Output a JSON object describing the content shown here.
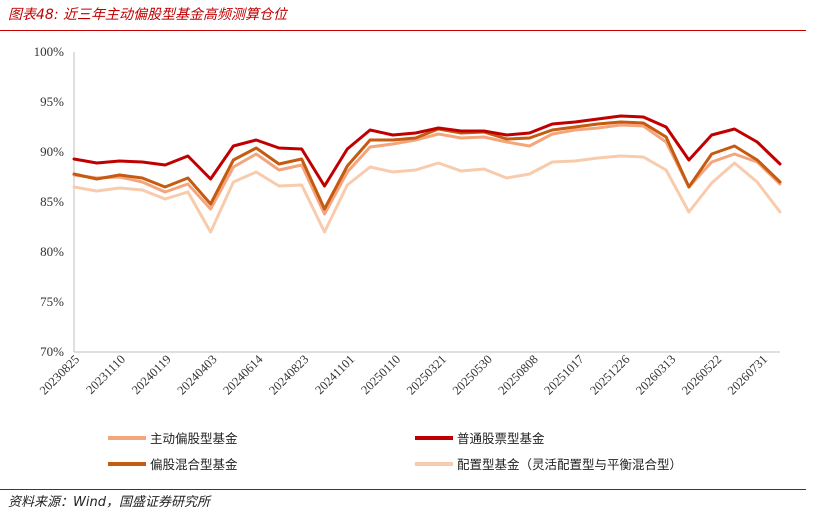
{
  "header": {
    "figure_label": "图表48:",
    "title": "近三年主动偏股型基金高频测算仓位"
  },
  "footer": {
    "source": "资料来源：Wind，国盛证券研究所"
  },
  "colors": {
    "accent": "#c00000",
    "series": [
      "#F4A57C",
      "#C00000",
      "#C55A11",
      "#F8CBAD"
    ]
  },
  "chart_data": {
    "type": "line",
    "title": "近三年主动偏股型基金高频测算仓位",
    "xlabel": "",
    "ylabel": "",
    "ylim": [
      70,
      100
    ],
    "yticks": [
      "70%",
      "75%",
      "80%",
      "85%",
      "90%",
      "95%",
      "100%"
    ],
    "grid": false,
    "legend_position": "bottom",
    "x_labels": [
      "20230825",
      "20231110",
      "20240119",
      "20240403",
      "20240614",
      "20240823",
      "20241101",
      "20250110",
      "20250321",
      "20250530",
      "20250808",
      "20251017",
      "20251226",
      "20260313",
      "20260522",
      "20260731"
    ],
    "x": [
      "2023-08-25",
      "2023-10-06",
      "2023-11-10",
      "2023-12-15",
      "2024-01-19",
      "2024-02-23",
      "2024-04-03",
      "2024-05-10",
      "2024-06-14",
      "2024-07-19",
      "2024-08-23",
      "2024-09-27",
      "2024-11-01",
      "2024-12-06",
      "2025-01-10",
      "2025-02-14",
      "2025-03-21",
      "2025-04-25",
      "2025-05-30",
      "2025-07-04",
      "2025-08-08",
      "2025-09-12",
      "2025-10-17",
      "2025-11-21",
      "2025-12-26",
      "2026-01-30",
      "2026-03-13",
      "2026-04-17",
      "2026-05-22",
      "2026-06-26",
      "2026-07-31",
      "2026-09-04"
    ],
    "series": [
      {
        "name": "主动偏股型基金",
        "color": "#F4A57C",
        "values": [
          87.7,
          87.4,
          87.5,
          87.0,
          86.0,
          86.8,
          84.3,
          88.5,
          89.8,
          88.2,
          88.7,
          83.8,
          88.0,
          90.5,
          90.8,
          91.2,
          91.8,
          91.4,
          91.5,
          91.0,
          90.6,
          91.8,
          92.2,
          92.4,
          92.7,
          92.6,
          91.0,
          86.5,
          89.0,
          89.8,
          89.0,
          86.8
        ]
      },
      {
        "name": "普通股票型基金",
        "color": "#C00000",
        "values": [
          89.3,
          88.9,
          89.1,
          89.0,
          88.7,
          89.6,
          87.3,
          90.6,
          91.2,
          90.4,
          90.3,
          86.6,
          90.3,
          92.2,
          91.7,
          91.9,
          92.4,
          92.1,
          92.1,
          91.7,
          91.9,
          92.8,
          93.0,
          93.3,
          93.6,
          93.5,
          92.5,
          89.2,
          91.7,
          92.3,
          91.0,
          88.8
        ]
      },
      {
        "name": "偏股混合型基金",
        "color": "#C55A11",
        "values": [
          87.8,
          87.3,
          87.7,
          87.4,
          86.5,
          87.4,
          84.8,
          89.2,
          90.4,
          88.8,
          89.3,
          84.3,
          88.6,
          91.2,
          91.2,
          91.4,
          92.3,
          91.9,
          92.0,
          91.3,
          91.4,
          92.2,
          92.5,
          92.8,
          93.0,
          92.9,
          91.5,
          86.5,
          89.8,
          90.6,
          89.2,
          87.0
        ]
      },
      {
        "name": "配置型基金（灵活配置型与平衡混合型）",
        "legend_label": "配置型基金（灵活配置型与平衡混合型）",
        "color": "#F8CBAD",
        "values": [
          86.5,
          86.1,
          86.4,
          86.2,
          85.3,
          86.0,
          82.0,
          87.0,
          88.0,
          86.6,
          86.7,
          82.0,
          86.7,
          88.5,
          88.0,
          88.2,
          88.9,
          88.1,
          88.3,
          87.4,
          87.8,
          89.0,
          89.1,
          89.4,
          89.6,
          89.5,
          88.2,
          84.0,
          86.9,
          88.9,
          87.0,
          84.0
        ]
      }
    ]
  }
}
